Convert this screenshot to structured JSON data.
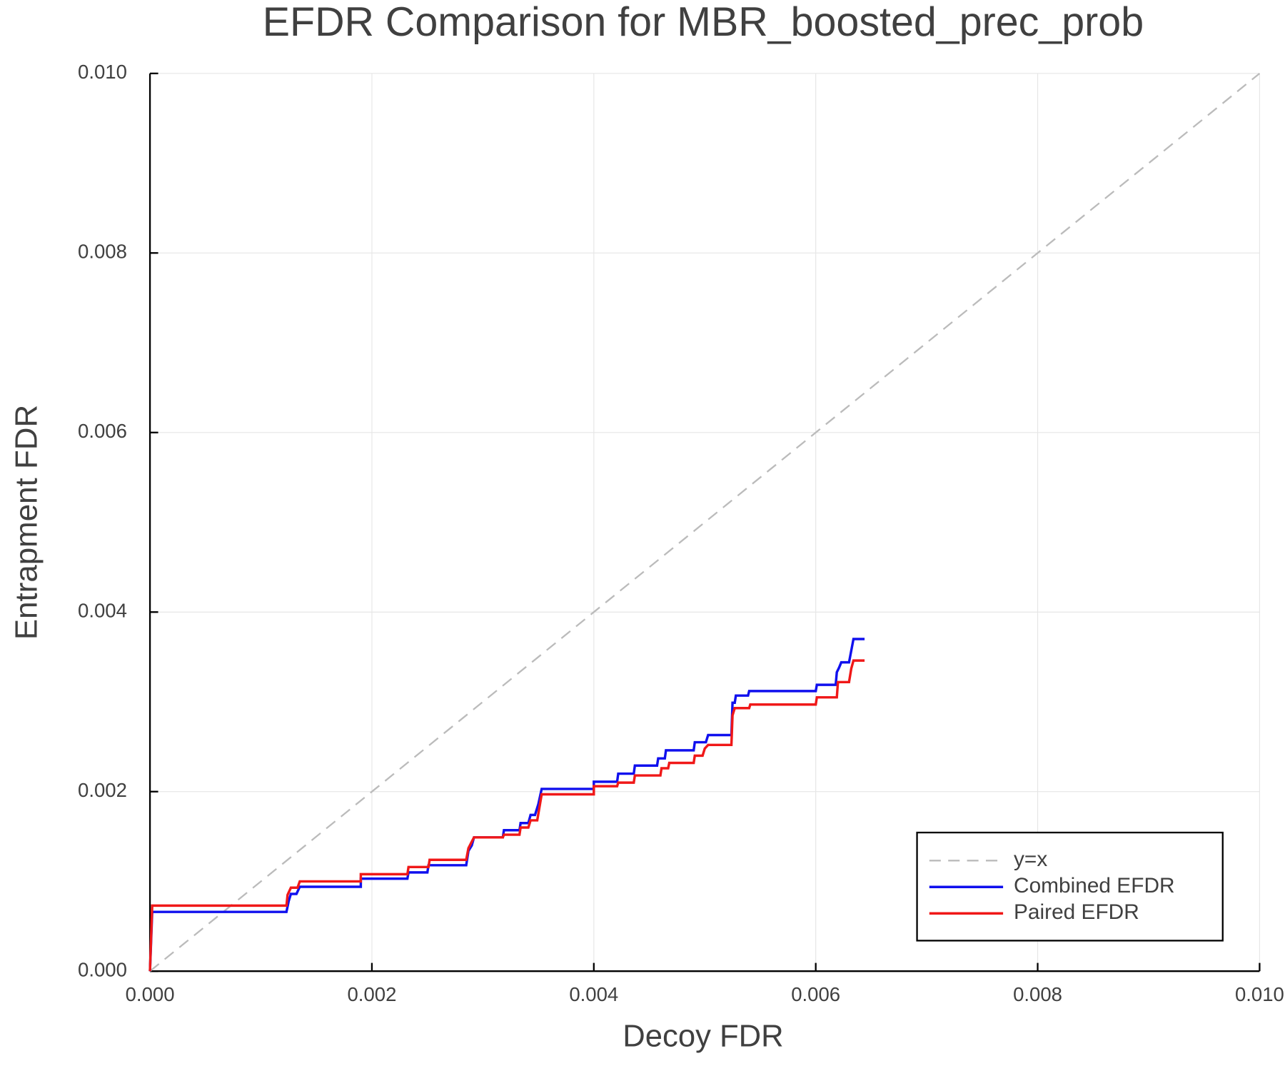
{
  "chart_data": {
    "type": "line",
    "title": "EFDR Comparison for MBR_boosted_prec_prob",
    "x_label": "Decoy FDR",
    "y_label": "Entrapment FDR",
    "xlim": [
      0,
      0.01
    ],
    "ylim": [
      0,
      0.01
    ],
    "xticks": [
      {
        "value": 0,
        "label": "0.000"
      },
      0.002,
      0.004,
      0.006,
      0.008,
      {
        "value": 0.01,
        "label": "0.010"
      }
    ],
    "yticks": [
      {
        "value": 0,
        "label": "0.000"
      },
      0.002,
      0.004,
      0.006,
      0.008,
      {
        "value": 0.01,
        "label": "0.010"
      }
    ],
    "grid": true,
    "legend": "lower right",
    "series": [
      {
        "name": "y=x",
        "color": "#bbbbbb",
        "dashed": true,
        "x": [
          0,
          0.01
        ],
        "values": [
          0,
          0.01
        ]
      },
      {
        "name": "Combined EFDR",
        "color": "#1010ee",
        "x": [
          0,
          2e-05,
          0.00123,
          0.00125,
          0.00127,
          0.00132,
          0.00135,
          0.0019,
          0.0019,
          0.00232,
          0.00233,
          0.0025,
          0.00251,
          0.00285,
          0.00287,
          0.0029,
          0.00292,
          0.00318,
          0.00319,
          0.00333,
          0.00334,
          0.00341,
          0.00343,
          0.00347,
          0.0035,
          0.00353,
          0.004,
          0.004,
          0.00421,
          0.00422,
          0.00436,
          0.00437,
          0.00457,
          0.00458,
          0.00464,
          0.00465,
          0.0049,
          0.00491,
          0.00501,
          0.00503,
          0.00524,
          0.00525,
          0.00527,
          0.00528,
          0.00539,
          0.0054,
          0.006,
          0.00601,
          0.00618,
          0.00619,
          0.00621,
          0.00623,
          0.0063,
          0.00634,
          0.00644
        ],
        "values": [
          0,
          0.00066,
          0.00066,
          0.00078,
          0.00086,
          0.00086,
          0.00094,
          0.00094,
          0.00103,
          0.00103,
          0.0011,
          0.0011,
          0.00118,
          0.00118,
          0.00134,
          0.0014,
          0.00149,
          0.00149,
          0.00157,
          0.00157,
          0.00165,
          0.00165,
          0.00174,
          0.00174,
          0.00186,
          0.00203,
          0.00203,
          0.00211,
          0.00211,
          0.0022,
          0.0022,
          0.00229,
          0.00229,
          0.00237,
          0.00237,
          0.00246,
          0.00246,
          0.00255,
          0.00255,
          0.00263,
          0.00263,
          0.00299,
          0.00299,
          0.00307,
          0.00307,
          0.00312,
          0.00312,
          0.00319,
          0.00319,
          0.00333,
          0.00338,
          0.00344,
          0.00344,
          0.0037,
          0.0037
        ]
      },
      {
        "name": "Paired EFDR",
        "color": "#f01818",
        "x": [
          0,
          2e-05,
          0.00123,
          0.00124,
          0.00127,
          0.00133,
          0.00135,
          0.0019,
          0.0019,
          0.00232,
          0.00233,
          0.00251,
          0.00252,
          0.00285,
          0.00287,
          0.00292,
          0.00318,
          0.00319,
          0.00333,
          0.00334,
          0.00341,
          0.00343,
          0.00349,
          0.00353,
          0.004,
          0.004,
          0.00421,
          0.00422,
          0.00436,
          0.00437,
          0.0046,
          0.00461,
          0.00467,
          0.00468,
          0.0049,
          0.00491,
          0.00498,
          0.005,
          0.00503,
          0.00524,
          0.00525,
          0.00527,
          0.0054,
          0.00541,
          0.006,
          0.00601,
          0.00619,
          0.0062,
          0.0063,
          0.00632,
          0.00634,
          0.00644
        ],
        "values": [
          0,
          0.00073,
          0.00073,
          0.00085,
          0.00093,
          0.00093,
          0.001,
          0.001,
          0.00108,
          0.00108,
          0.00116,
          0.00116,
          0.00124,
          0.00124,
          0.00137,
          0.00149,
          0.00149,
          0.00152,
          0.00152,
          0.0016,
          0.0016,
          0.00168,
          0.00168,
          0.00197,
          0.00197,
          0.00206,
          0.00206,
          0.0021,
          0.0021,
          0.00218,
          0.00218,
          0.00226,
          0.00226,
          0.00232,
          0.00232,
          0.0024,
          0.0024,
          0.00248,
          0.00252,
          0.00252,
          0.00285,
          0.00293,
          0.00293,
          0.00297,
          0.00297,
          0.00305,
          0.00305,
          0.00322,
          0.00322,
          0.00337,
          0.00346,
          0.00346
        ]
      }
    ]
  }
}
